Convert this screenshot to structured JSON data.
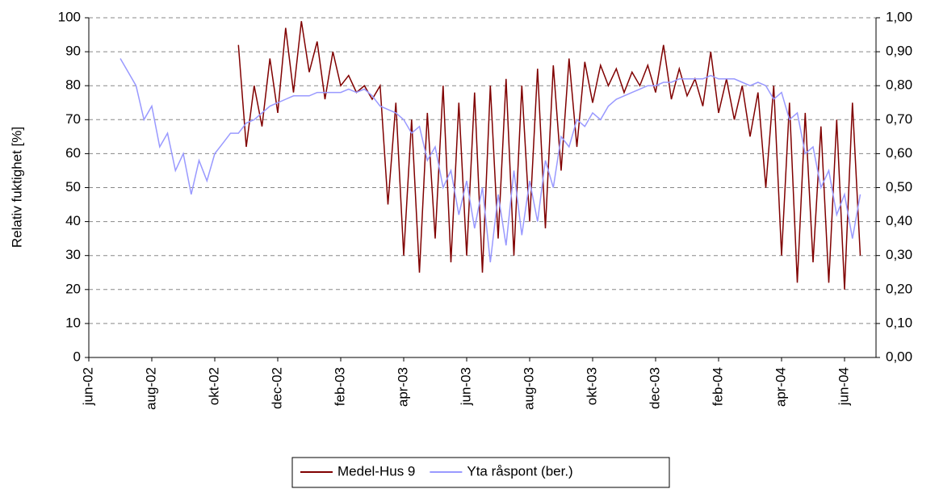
{
  "chart_data": {
    "type": "line",
    "y_label": "Relativ fuktighet [%]",
    "x": [
      1,
      1.25,
      1.5,
      1.75,
      2,
      2.25,
      2.5,
      2.75,
      3,
      3.25,
      3.5,
      3.75,
      4,
      4.25,
      4.5,
      4.75,
      5,
      5.25,
      5.5,
      5.75,
      6,
      6.25,
      6.5,
      6.75,
      7,
      7.25,
      7.5,
      7.75,
      8,
      8.25,
      8.5,
      8.75,
      9,
      9.25,
      9.5,
      9.75,
      10,
      10.25,
      10.5,
      10.75,
      11,
      11.25,
      11.5,
      11.75,
      12,
      12.25,
      12.5,
      12.75,
      13,
      13.25,
      13.5,
      13.75,
      14,
      14.25,
      14.5,
      14.75,
      15,
      15.25,
      15.5,
      15.75,
      16,
      16.25,
      16.5,
      16.75,
      17,
      17.25,
      17.5,
      17.75,
      18,
      18.25,
      18.5,
      18.75,
      19,
      19.25,
      19.5,
      19.75,
      20,
      20.25,
      20.5,
      20.75,
      21,
      21.25,
      21.5,
      21.75,
      22,
      22.25,
      22.5,
      22.75,
      23,
      23.25,
      23.5,
      23.75,
      24,
      24.25,
      24.5
    ],
    "series": [
      {
        "name": "Medel-Hus 9",
        "color": "#800000",
        "axis": "y",
        "values": [
          null,
          null,
          null,
          null,
          null,
          null,
          null,
          null,
          null,
          null,
          null,
          null,
          null,
          null,
          null,
          92,
          62,
          80,
          68,
          88,
          72,
          97,
          78,
          99,
          84,
          93,
          76,
          90,
          80,
          83,
          78,
          80,
          76,
          80,
          45,
          75,
          30,
          70,
          25,
          72,
          35,
          80,
          28,
          75,
          30,
          78,
          25,
          80,
          35,
          82,
          30,
          80,
          40,
          85,
          38,
          86,
          55,
          88,
          62,
          87,
          75,
          86,
          80,
          85,
          78,
          84,
          80,
          86,
          78,
          92,
          76,
          85,
          77,
          82,
          74,
          90,
          72,
          82,
          70,
          80,
          65,
          78,
          50,
          80,
          30,
          75,
          22,
          72,
          28,
          68,
          22,
          70,
          20,
          75,
          30
        ]
      },
      {
        "name": "Yta råspont (ber.)",
        "color": "#9999ff",
        "axis": "y2",
        "values": [
          0.88,
          0.84,
          0.8,
          0.7,
          0.74,
          0.62,
          0.66,
          0.55,
          0.6,
          0.48,
          0.58,
          0.52,
          0.6,
          0.63,
          0.66,
          0.66,
          0.69,
          0.7,
          0.72,
          0.74,
          0.75,
          0.76,
          0.77,
          0.77,
          0.77,
          0.78,
          0.78,
          0.78,
          0.78,
          0.79,
          0.78,
          0.79,
          0.77,
          0.74,
          0.73,
          0.72,
          0.7,
          0.66,
          0.68,
          0.58,
          0.62,
          0.5,
          0.55,
          0.42,
          0.52,
          0.38,
          0.5,
          0.28,
          0.48,
          0.33,
          0.55,
          0.36,
          0.52,
          0.4,
          0.58,
          0.5,
          0.65,
          0.62,
          0.7,
          0.68,
          0.72,
          0.7,
          0.74,
          0.76,
          0.77,
          0.78,
          0.79,
          0.8,
          0.8,
          0.81,
          0.81,
          0.82,
          0.82,
          0.82,
          0.82,
          0.83,
          0.82,
          0.82,
          0.82,
          0.81,
          0.8,
          0.81,
          0.8,
          0.76,
          0.78,
          0.7,
          0.72,
          0.6,
          0.62,
          0.5,
          0.55,
          0.42,
          0.48,
          0.35,
          0.48
        ]
      }
    ],
    "xlim": [
      0,
      25
    ],
    "xticks": [
      {
        "value": 0,
        "label": "jun-02"
      },
      {
        "value": 2,
        "label": "aug-02"
      },
      {
        "value": 4,
        "label": "okt-02"
      },
      {
        "value": 6,
        "label": "dec-02"
      },
      {
        "value": 8,
        "label": "feb-03"
      },
      {
        "value": 10,
        "label": "apr-03"
      },
      {
        "value": 12,
        "label": "jun-03"
      },
      {
        "value": 14,
        "label": "aug-03"
      },
      {
        "value": 16,
        "label": "okt-03"
      },
      {
        "value": 18,
        "label": "dec-03"
      },
      {
        "value": 20,
        "label": "feb-04"
      },
      {
        "value": 22,
        "label": "apr-04"
      },
      {
        "value": 24,
        "label": "jun-04"
      }
    ],
    "ylim": [
      0,
      100
    ],
    "yticks": [
      0,
      10,
      20,
      30,
      40,
      50,
      60,
      70,
      80,
      90,
      100
    ],
    "y2lim": [
      0,
      1
    ],
    "y2ticks": [
      {
        "value": 0,
        "label": "0,00"
      },
      {
        "value": 0.1,
        "label": "0,10"
      },
      {
        "value": 0.2,
        "label": "0,20"
      },
      {
        "value": 0.3,
        "label": "0,30"
      },
      {
        "value": 0.4,
        "label": "0,40"
      },
      {
        "value": 0.5,
        "label": "0,50"
      },
      {
        "value": 0.6,
        "label": "0,60"
      },
      {
        "value": 0.7,
        "label": "0,70"
      },
      {
        "value": 0.8,
        "label": "0,80"
      },
      {
        "value": 0.9,
        "label": "0,90"
      },
      {
        "value": 1,
        "label": "1,00"
      }
    ],
    "grid": true,
    "legend": "bottom"
  }
}
